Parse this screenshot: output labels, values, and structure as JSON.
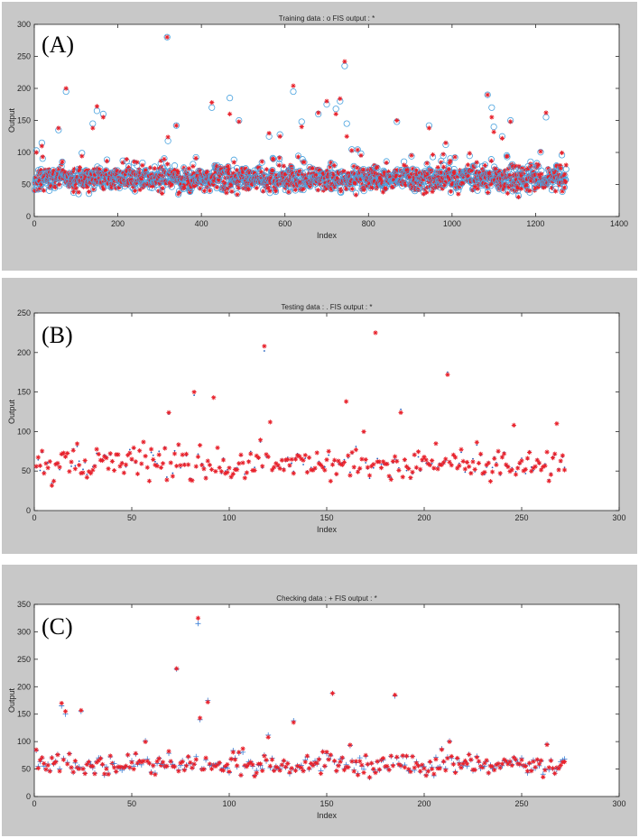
{
  "chart_data": [
    {
      "type": "scatter",
      "panel_label": "(A)",
      "title": "Training data : o   FIS output : *",
      "xlabel": "Index",
      "ylabel": "Output",
      "xlim": [
        0,
        1400
      ],
      "ylim": [
        0,
        300
      ],
      "xticks": [
        0,
        200,
        400,
        600,
        800,
        1000,
        1200,
        1400
      ],
      "yticks": [
        0,
        50,
        100,
        150,
        200,
        250,
        300
      ],
      "n_points": 1273,
      "series": [
        {
          "marker": "o",
          "color": "#4aa3df"
        },
        {
          "marker": "*",
          "color": "#e8202a"
        }
      ],
      "highlights": [
        {
          "x": 5,
          "y": 103,
          "fis": 100
        },
        {
          "x": 18,
          "y": 115,
          "fis": 110
        },
        {
          "x": 58,
          "y": 135,
          "fis": 138
        },
        {
          "x": 76,
          "y": 195,
          "fis": 200
        },
        {
          "x": 140,
          "y": 145,
          "fis": 138
        },
        {
          "x": 150,
          "y": 165,
          "fis": 172
        },
        {
          "x": 165,
          "y": 160,
          "fis": 155
        },
        {
          "x": 318,
          "y": 280,
          "fis": 280
        },
        {
          "x": 320,
          "y": 118,
          "fis": 124
        },
        {
          "x": 340,
          "y": 142,
          "fis": 142
        },
        {
          "x": 425,
          "y": 170,
          "fis": 178
        },
        {
          "x": 468,
          "y": 185,
          "fis": 160
        },
        {
          "x": 490,
          "y": 150,
          "fis": 148
        },
        {
          "x": 562,
          "y": 125,
          "fis": 130
        },
        {
          "x": 588,
          "y": 128,
          "fis": 125
        },
        {
          "x": 620,
          "y": 195,
          "fis": 204
        },
        {
          "x": 640,
          "y": 148,
          "fis": 140
        },
        {
          "x": 680,
          "y": 160,
          "fis": 162
        },
        {
          "x": 700,
          "y": 175,
          "fis": 180
        },
        {
          "x": 722,
          "y": 168,
          "fis": 160
        },
        {
          "x": 732,
          "y": 180,
          "fis": 184
        },
        {
          "x": 743,
          "y": 235,
          "fis": 242
        },
        {
          "x": 748,
          "y": 145,
          "fis": 125
        },
        {
          "x": 868,
          "y": 148,
          "fis": 150
        },
        {
          "x": 945,
          "y": 142,
          "fis": 138
        },
        {
          "x": 985,
          "y": 112,
          "fis": 115
        },
        {
          "x": 1085,
          "y": 190,
          "fis": 190
        },
        {
          "x": 1095,
          "y": 170,
          "fis": 155
        },
        {
          "x": 1100,
          "y": 140,
          "fis": 132
        },
        {
          "x": 1120,
          "y": 125,
          "fis": 122
        },
        {
          "x": 1140,
          "y": 150,
          "fis": 148
        },
        {
          "x": 1225,
          "y": 155,
          "fis": 162
        }
      ]
    },
    {
      "type": "scatter",
      "panel_label": "(B)",
      "title": "Testing data : .   FIS output : *",
      "xlabel": "Index",
      "ylabel": "Output",
      "xlim": [
        0,
        300
      ],
      "ylim": [
        0,
        250
      ],
      "xticks": [
        0,
        50,
        100,
        150,
        200,
        250,
        300
      ],
      "yticks": [
        0,
        50,
        100,
        150,
        200,
        250
      ],
      "n_points": 272,
      "series": [
        {
          "marker": ".",
          "color": "#1f5fbf"
        },
        {
          "marker": "*",
          "color": "#e8202a"
        }
      ],
      "highlights": [
        {
          "x": 69,
          "y": 122,
          "fis": 124
        },
        {
          "x": 82,
          "y": 146,
          "fis": 150
        },
        {
          "x": 92,
          "y": 143,
          "fis": 143
        },
        {
          "x": 118,
          "y": 202,
          "fis": 208
        },
        {
          "x": 121,
          "y": 112,
          "fis": 112
        },
        {
          "x": 160,
          "y": 138,
          "fis": 138
        },
        {
          "x": 175,
          "y": 225,
          "fis": 225
        },
        {
          "x": 188,
          "y": 128,
          "fis": 124
        },
        {
          "x": 212,
          "y": 175,
          "fis": 172
        },
        {
          "x": 246,
          "y": 108,
          "fis": 108
        },
        {
          "x": 268,
          "y": 110,
          "fis": 110
        }
      ]
    },
    {
      "type": "scatter",
      "panel_label": "(C)",
      "title": "Checking data : +   FIS output : *",
      "xlabel": "Index",
      "ylabel": "Output",
      "xlim": [
        0,
        300
      ],
      "ylim": [
        0,
        350
      ],
      "xticks": [
        0,
        50,
        100,
        150,
        200,
        250,
        300
      ],
      "yticks": [
        0,
        50,
        100,
        150,
        200,
        250,
        300,
        350
      ],
      "n_points": 272,
      "series": [
        {
          "marker": "+",
          "color": "#3a7fd5"
        },
        {
          "marker": "*",
          "color": "#e8202a"
        }
      ],
      "highlights": [
        {
          "x": 14,
          "y": 165,
          "fis": 170
        },
        {
          "x": 16,
          "y": 150,
          "fis": 155
        },
        {
          "x": 24,
          "y": 155,
          "fis": 157
        },
        {
          "x": 73,
          "y": 232,
          "fis": 233
        },
        {
          "x": 84,
          "y": 315,
          "fis": 325
        },
        {
          "x": 85,
          "y": 140,
          "fis": 143
        },
        {
          "x": 89,
          "y": 175,
          "fis": 172
        },
        {
          "x": 120,
          "y": 112,
          "fis": 108
        },
        {
          "x": 133,
          "y": 138,
          "fis": 135
        },
        {
          "x": 153,
          "y": 188,
          "fis": 188
        },
        {
          "x": 185,
          "y": 183,
          "fis": 185
        }
      ]
    }
  ]
}
